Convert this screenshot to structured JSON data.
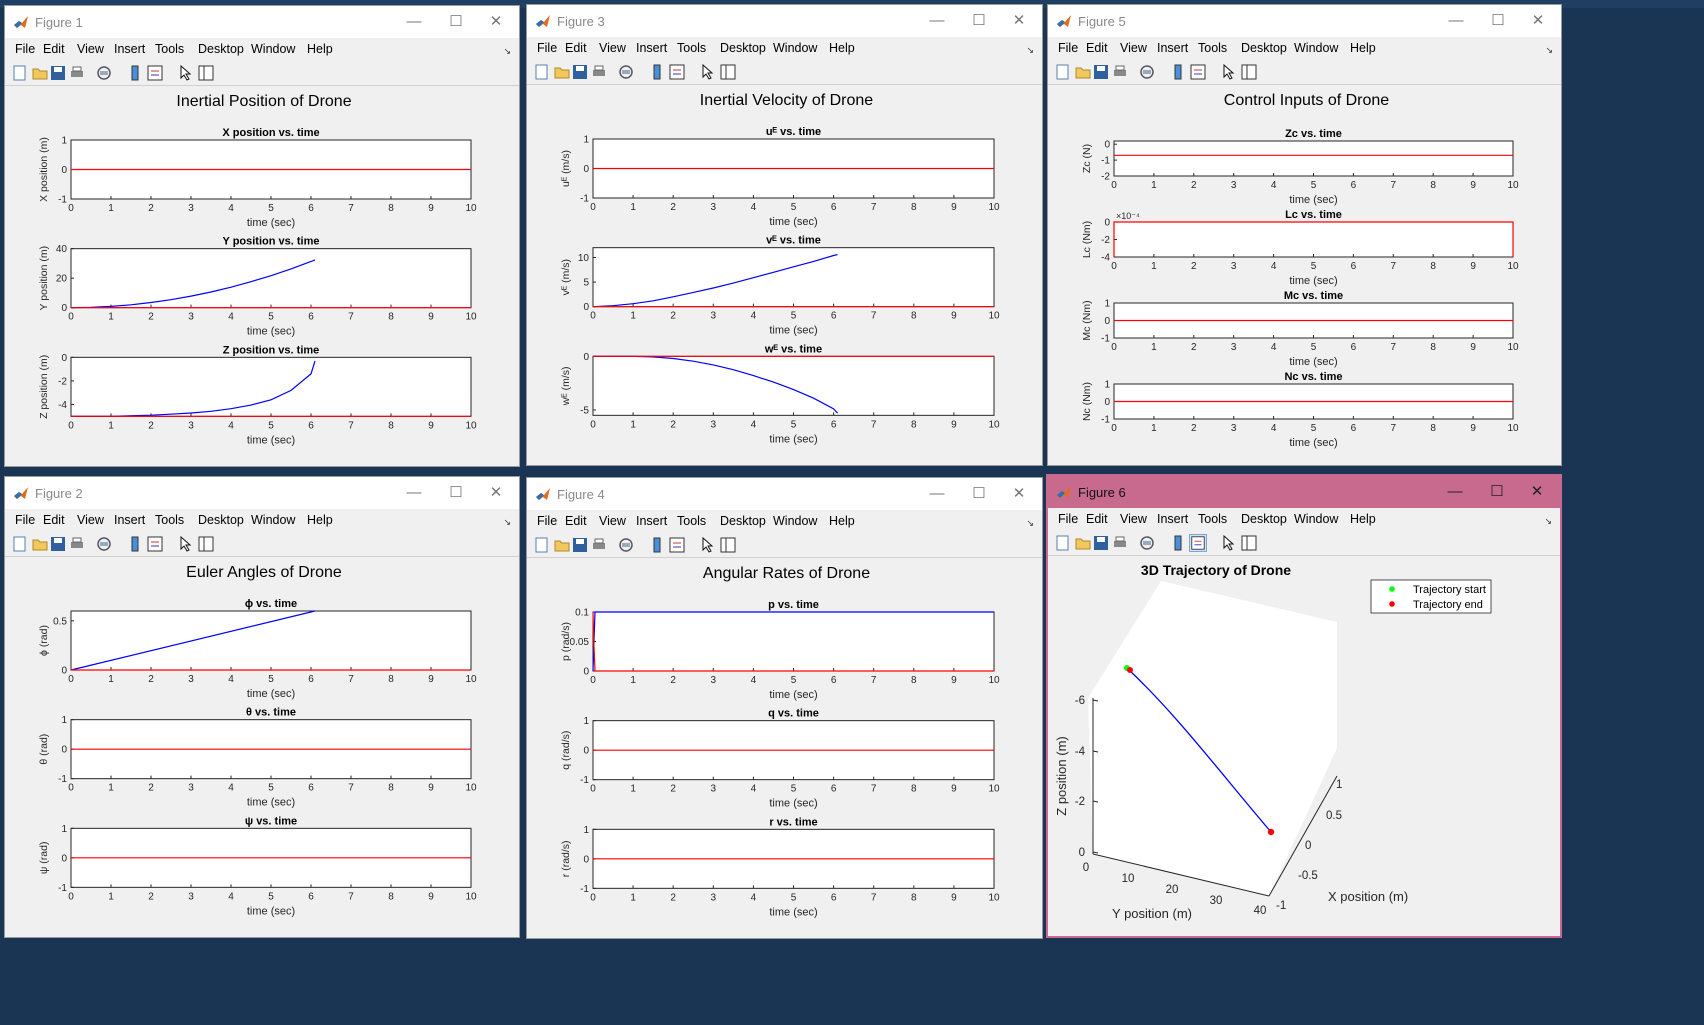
{
  "figures": [
    {
      "id": "fig1",
      "title": "Figure 1",
      "active": false,
      "menus": [
        "File",
        "Edit",
        "View",
        "Insert",
        "Tools",
        "Desktop",
        "Window",
        "Help"
      ],
      "super_title": "Inertial Position of Drone",
      "subplots": [
        {
          "title": "X position vs. time",
          "ylabel": "X position (m)",
          "xlabel": "time (sec)",
          "xlim": [
            0,
            10
          ],
          "ylim": [
            -1,
            1
          ],
          "yticks": [
            -1,
            0,
            1
          ],
          "series": [
            {
              "color": "#ff0000",
              "x": [
                0,
                10
              ],
              "y": [
                0,
                0
              ]
            }
          ]
        },
        {
          "title": "Y position vs. time",
          "ylabel": "Y position (m)",
          "xlabel": "time (sec)",
          "xlim": [
            0,
            10
          ],
          "ylim": [
            0,
            40
          ],
          "yticks": [
            0,
            20,
            40
          ],
          "series": [
            {
              "color": "#0000ff",
              "x": [
                0,
                0.5,
                1,
                1.5,
                2,
                2.5,
                3,
                3.5,
                4,
                4.5,
                5,
                5.5,
                6,
                6.1
              ],
              "y": [
                0,
                0.22,
                0.87,
                1.96,
                3.48,
                5.43,
                7.82,
                10.65,
                13.9,
                17.6,
                21.7,
                26.3,
                31.3,
                32.4
              ]
            },
            {
              "color": "#ff0000",
              "x": [
                0,
                10
              ],
              "y": [
                0,
                0
              ]
            }
          ]
        },
        {
          "title": "Z position vs. time",
          "ylabel": "Z position (m)",
          "xlabel": "time (sec)",
          "xlim": [
            0,
            10
          ],
          "ylim": [
            -5,
            0
          ],
          "yticks": [
            -4,
            -2,
            0
          ],
          "series": [
            {
              "color": "#0000ff",
              "x": [
                0,
                1,
                2,
                2.5,
                3,
                3.5,
                4,
                4.5,
                5,
                5.5,
                6,
                6.1
              ],
              "y": [
                -5,
                -5,
                -4.9,
                -4.82,
                -4.72,
                -4.57,
                -4.35,
                -4.05,
                -3.6,
                -2.8,
                -1.4,
                -0.3
              ]
            },
            {
              "color": "#ff0000",
              "x": [
                0,
                10
              ],
              "y": [
                -5,
                -5
              ]
            }
          ]
        }
      ]
    },
    {
      "id": "fig3",
      "title": "Figure 3",
      "active": false,
      "menus": [
        "File",
        "Edit",
        "View",
        "Insert",
        "Tools",
        "Desktop",
        "Window",
        "Help"
      ],
      "super_title": "Inertial Velocity of Drone",
      "subplots": [
        {
          "title": "uᴱ vs. time",
          "ylabel": "uᴱ (m/s)",
          "xlabel": "time (sec)",
          "xlim": [
            0,
            10
          ],
          "ylim": [
            -1,
            1
          ],
          "yticks": [
            -1,
            0,
            1
          ],
          "series": [
            {
              "color": "#ff0000",
              "x": [
                0,
                10
              ],
              "y": [
                0,
                0
              ]
            }
          ]
        },
        {
          "title": "vᴱ vs. time",
          "ylabel": "vᴱ (m/s)",
          "xlabel": "time (sec)",
          "xlim": [
            0,
            10
          ],
          "ylim": [
            0,
            12
          ],
          "yticks": [
            0,
            5,
            10
          ],
          "series": [
            {
              "color": "#0000ff",
              "x": [
                0,
                0.5,
                1,
                1.5,
                2,
                2.5,
                3,
                3.5,
                4,
                4.5,
                5,
                5.5,
                6,
                6.1
              ],
              "y": [
                0,
                0.2,
                0.6,
                1.2,
                2,
                2.9,
                3.8,
                4.8,
                5.9,
                7,
                8.1,
                9.2,
                10.4,
                10.6
              ]
            },
            {
              "color": "#ff0000",
              "x": [
                0,
                10
              ],
              "y": [
                0,
                0
              ]
            }
          ]
        },
        {
          "title": "wᴱ vs. time",
          "ylabel": "wᴱ (m/s)",
          "xlabel": "time (sec)",
          "xlim": [
            0,
            10
          ],
          "ylim": [
            -5.5,
            0
          ],
          "yticks": [
            -5,
            0
          ],
          "series": [
            {
              "color": "#0000ff",
              "x": [
                0,
                1,
                1.5,
                2,
                2.5,
                3,
                3.5,
                4,
                4.5,
                5,
                5.5,
                6,
                6.1
              ],
              "y": [
                0,
                0,
                -0.05,
                -0.2,
                -0.45,
                -0.8,
                -1.25,
                -1.8,
                -2.4,
                -3.1,
                -3.9,
                -4.9,
                -5.3
              ]
            },
            {
              "color": "#ff0000",
              "x": [
                0,
                10
              ],
              "y": [
                0,
                0
              ]
            }
          ]
        }
      ]
    },
    {
      "id": "fig5",
      "title": "Figure 5",
      "active": false,
      "menus": [
        "File",
        "Edit",
        "View",
        "Insert",
        "Tools",
        "Desktop",
        "Window",
        "Help"
      ],
      "super_title": "Control Inputs of Drone",
      "subplots": [
        {
          "title": "Zc vs. time",
          "ylabel": "Zc (N)",
          "xlabel": "time (sec)",
          "xlim": [
            0,
            10
          ],
          "ylim": [
            -2,
            0.2
          ],
          "yticks": [
            -2,
            -1,
            0
          ],
          "series": [
            {
              "color": "#ff0000",
              "x": [
                0,
                10
              ],
              "y": [
                -0.7,
                -0.7
              ]
            }
          ]
        },
        {
          "title": "Lc vs. time",
          "ylabel": "Lc (Nm)",
          "xlabel": "time (sec)",
          "xlim": [
            0,
            10
          ],
          "ylim": [
            -4,
            0
          ],
          "yticks": [
            -4,
            -2,
            0
          ],
          "exponent": "×10⁻⁴",
          "series": [
            {
              "color": "#ff0000",
              "x": [
                0,
                0,
                10,
                10
              ],
              "y": [
                -4,
                0,
                0,
                -4
              ]
            }
          ]
        },
        {
          "title": "Mc vs. time",
          "ylabel": "Mc (Nm)",
          "xlabel": "time (sec)",
          "xlim": [
            0,
            10
          ],
          "ylim": [
            -1,
            1
          ],
          "yticks": [
            -1,
            0,
            1
          ],
          "series": [
            {
              "color": "#ff0000",
              "x": [
                0,
                10
              ],
              "y": [
                0,
                0
              ]
            }
          ]
        },
        {
          "title": "Nc vs. time",
          "ylabel": "Nc (Nm)",
          "xlabel": "time (sec)",
          "xlim": [
            0,
            10
          ],
          "ylim": [
            -1,
            1
          ],
          "yticks": [
            -1,
            0,
            1
          ],
          "series": [
            {
              "color": "#ff0000",
              "x": [
                0,
                10
              ],
              "y": [
                0,
                0
              ]
            }
          ]
        }
      ]
    },
    {
      "id": "fig2",
      "title": "Figure 2",
      "active": false,
      "menus": [
        "File",
        "Edit",
        "View",
        "Insert",
        "Tools",
        "Desktop",
        "Window",
        "Help"
      ],
      "super_title": "Euler Angles of Drone",
      "subplots": [
        {
          "title": "ϕ vs. time",
          "ylabel": "ϕ (rad)",
          "xlabel": "time (sec)",
          "xlim": [
            0,
            10
          ],
          "ylim": [
            0,
            0.6
          ],
          "yticks": [
            0,
            0.5
          ],
          "series": [
            {
              "color": "#0000ff",
              "x": [
                0,
                6.1
              ],
              "y": [
                0,
                0.6
              ]
            },
            {
              "color": "#ff0000",
              "x": [
                0,
                10
              ],
              "y": [
                0,
                0
              ]
            }
          ]
        },
        {
          "title": "θ vs. time",
          "ylabel": "θ (rad)",
          "xlabel": "time (sec)",
          "xlim": [
            0,
            10
          ],
          "ylim": [
            -1,
            1
          ],
          "yticks": [
            -1,
            0,
            1
          ],
          "series": [
            {
              "color": "#ff0000",
              "x": [
                0,
                10
              ],
              "y": [
                0,
                0
              ]
            }
          ]
        },
        {
          "title": "ψ vs. time",
          "ylabel": "ψ (rad)",
          "xlabel": "time (sec)",
          "xlim": [
            0,
            10
          ],
          "ylim": [
            -1,
            1
          ],
          "yticks": [
            -1,
            0,
            1
          ],
          "series": [
            {
              "color": "#ff0000",
              "x": [
                0,
                10
              ],
              "y": [
                0,
                0
              ]
            }
          ]
        }
      ]
    },
    {
      "id": "fig4",
      "title": "Figure 4",
      "active": false,
      "menus": [
        "File",
        "Edit",
        "View",
        "Insert",
        "Tools",
        "Desktop",
        "Window",
        "Help"
      ],
      "super_title": "Angular Rates of Drone",
      "subplots": [
        {
          "title": "p vs. time",
          "ylabel": "p (rad/s)",
          "xlabel": "time (sec)",
          "xlim": [
            0,
            10
          ],
          "ylim": [
            0,
            0.1
          ],
          "yticks": [
            0,
            0.05,
            0.1
          ],
          "series": [
            {
              "color": "#0000ff",
              "x": [
                0,
                0.05,
                10
              ],
              "y": [
                0,
                0.1,
                0.1
              ]
            },
            {
              "color": "#ff0000",
              "x": [
                0,
                0.02,
                0.05,
                10
              ],
              "y": [
                0.1,
                0.05,
                0,
                0
              ]
            }
          ]
        },
        {
          "title": "q vs. time",
          "ylabel": "q (rad/s)",
          "xlabel": "time (sec)",
          "xlim": [
            0,
            10
          ],
          "ylim": [
            -1,
            1
          ],
          "yticks": [
            -1,
            0,
            1
          ],
          "series": [
            {
              "color": "#ff0000",
              "x": [
                0,
                10
              ],
              "y": [
                0,
                0
              ]
            }
          ]
        },
        {
          "title": "r vs. time",
          "ylabel": "r (rad/s)",
          "xlabel": "time (sec)",
          "xlim": [
            0,
            10
          ],
          "ylim": [
            -1,
            1
          ],
          "yticks": [
            -1,
            0,
            1
          ],
          "series": [
            {
              "color": "#ff0000",
              "x": [
                0,
                10
              ],
              "y": [
                0,
                0
              ]
            }
          ]
        }
      ]
    },
    {
      "id": "fig6",
      "title": "Figure 6",
      "active": true,
      "menus": [
        "File",
        "Edit",
        "View",
        "Insert",
        "Tools",
        "Desktop",
        "Window",
        "Help"
      ],
      "trajectory": {
        "title": "3D Trajectory of Drone",
        "zlabel": "Z position (m)",
        "ylabel": "Y position (m)",
        "xlabel": "X position (m)",
        "zticks": [
          "-6",
          "-4",
          "-2",
          "0"
        ],
        "yticks": [
          "0",
          "10",
          "20",
          "30",
          "40"
        ],
        "xticks": [
          "1",
          "0.5",
          "0",
          "-0.5",
          "-1"
        ],
        "legend": [
          {
            "label": "Trajectory start",
            "color": "#00ff00"
          },
          {
            "label": "Trajectory end",
            "color": "#ff0000"
          }
        ]
      }
    }
  ],
  "chart_data": [
    {
      "type": "line",
      "title": "X position vs. time",
      "xlabel": "time (sec)",
      "ylabel": "X position (m)",
      "xlim": [
        0,
        10
      ],
      "ylim": [
        -1,
        1
      ]
    },
    {
      "type": "line",
      "title": "Y position vs. time",
      "xlabel": "time (sec)",
      "ylabel": "Y position (m)",
      "xlim": [
        0,
        10
      ],
      "ylim": [
        0,
        40
      ]
    },
    {
      "type": "line",
      "title": "Z position vs. time",
      "xlabel": "time (sec)",
      "ylabel": "Z position (m)",
      "xlim": [
        0,
        10
      ],
      "ylim": [
        -5,
        0
      ]
    }
  ]
}
